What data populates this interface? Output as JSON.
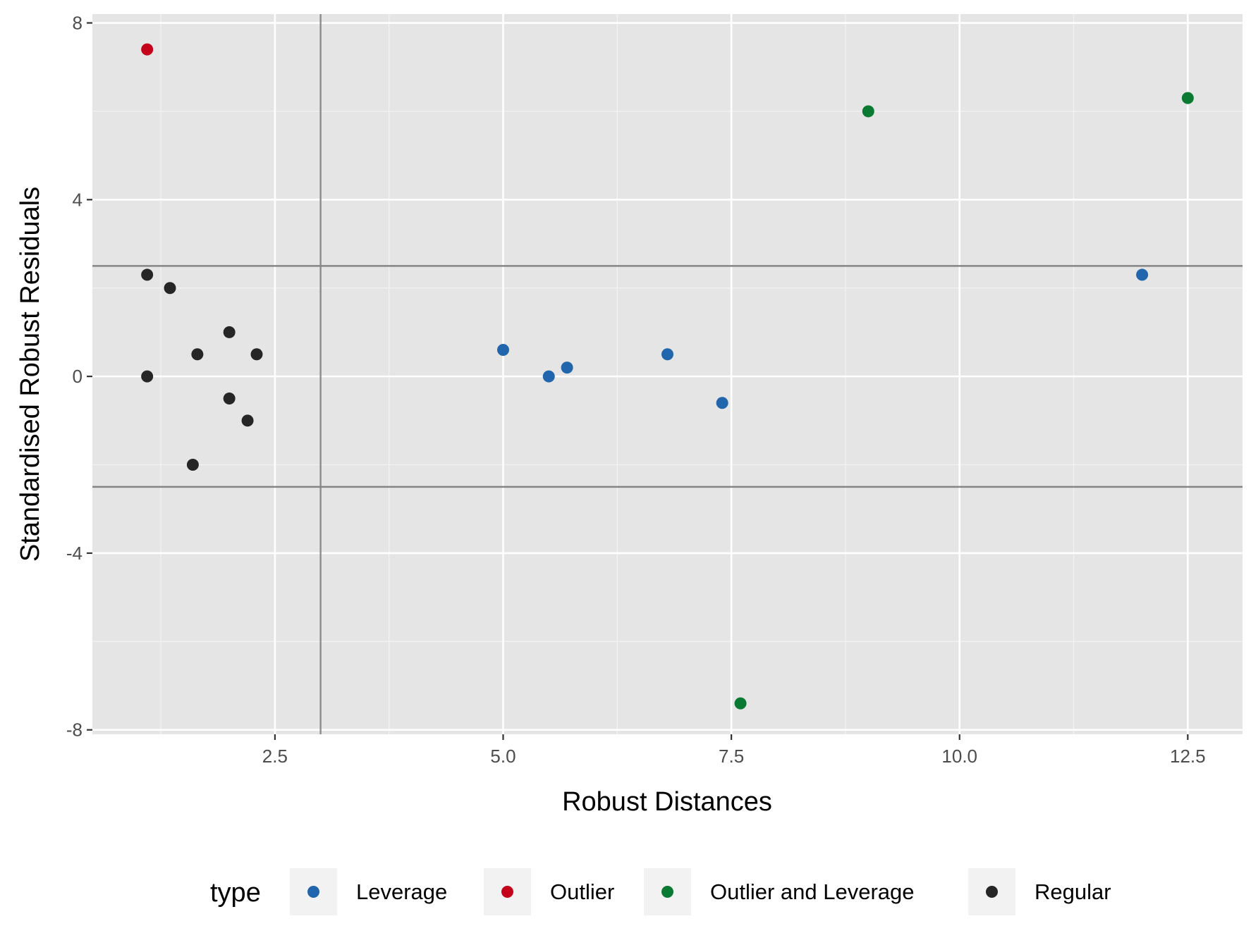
{
  "chart_data": {
    "type": "scatter",
    "xlabel": "Robust Distances",
    "ylabel": "Standardised Robust Residuals",
    "xlim": [
      0.5,
      13.1
    ],
    "ylim": [
      -8.1,
      8.2
    ],
    "x_ticks": [
      2.5,
      5.0,
      7.5,
      10.0,
      12.5
    ],
    "x_tick_labels": [
      "2.5",
      "5.0",
      "7.5",
      "10.0",
      "12.5"
    ],
    "y_ticks": [
      -8,
      -4,
      0,
      4,
      8
    ],
    "y_tick_labels": [
      "-8",
      "-4",
      "0",
      "4",
      "8"
    ],
    "grid": true,
    "reference_lines": {
      "vertical": [
        3.0
      ],
      "horizontal": [
        2.5,
        -2.5
      ]
    },
    "legend": {
      "title": "type",
      "placement": "bottom",
      "entries": [
        {
          "label": "Leverage",
          "color": "#2166ac"
        },
        {
          "label": "Outlier",
          "color": "#c4001a"
        },
        {
          "label": "Outlier and Leverage",
          "color": "#0a7a32"
        },
        {
          "label": "Regular",
          "color": "#262626"
        }
      ]
    },
    "series": [
      {
        "name": "Leverage",
        "color": "#2166ac",
        "points": [
          [
            5.0,
            0.6
          ],
          [
            5.5,
            0.0
          ],
          [
            5.7,
            0.2
          ],
          [
            6.8,
            0.5
          ],
          [
            7.4,
            -0.6
          ],
          [
            12.0,
            2.3
          ]
        ]
      },
      {
        "name": "Outlier",
        "color": "#c4001a",
        "points": [
          [
            1.1,
            7.4
          ]
        ]
      },
      {
        "name": "Outlier and Leverage",
        "color": "#0a7a32",
        "points": [
          [
            9.0,
            6.0
          ],
          [
            12.5,
            6.3
          ],
          [
            7.6,
            -7.4
          ]
        ]
      },
      {
        "name": "Regular",
        "color": "#262626",
        "points": [
          [
            1.1,
            2.3
          ],
          [
            1.35,
            2.0
          ],
          [
            2.0,
            1.0
          ],
          [
            1.65,
            0.5
          ],
          [
            2.3,
            0.5
          ],
          [
            1.1,
            0.0
          ],
          [
            2.0,
            -0.5
          ],
          [
            2.2,
            -1.0
          ],
          [
            1.6,
            -2.0
          ]
        ]
      }
    ]
  }
}
